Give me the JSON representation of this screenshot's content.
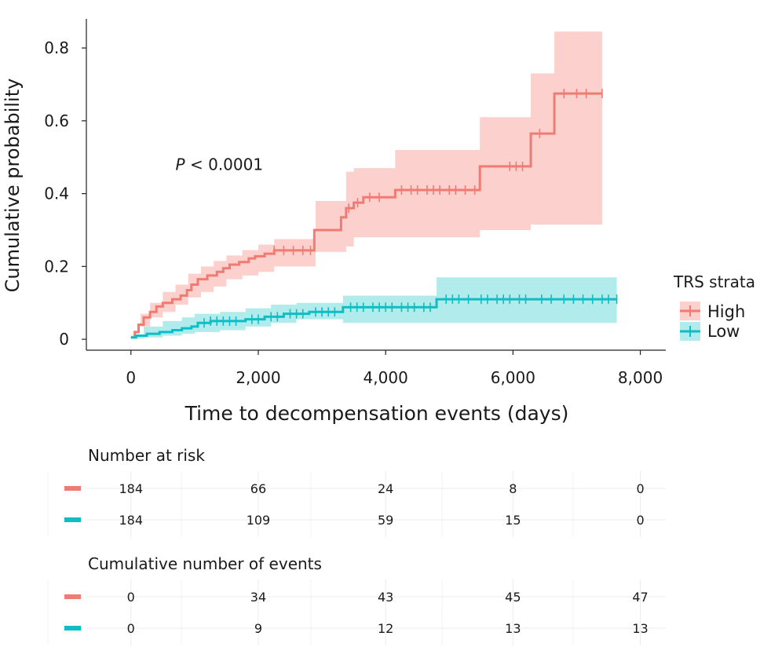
{
  "chart_data": {
    "type": "line",
    "subtype": "kaplan-meier cumulative incidence",
    "xlabel": "Time to decompensation events (days)",
    "ylabel": "Cumulative probability",
    "xlim": [
      -700,
      8400
    ],
    "ylim": [
      -0.03,
      0.88
    ],
    "x_ticks": [
      0,
      2000,
      4000,
      6000,
      8000
    ],
    "x_tick_labels": [
      "0",
      "2,000",
      "4,000",
      "6,000",
      "8,000"
    ],
    "y_ticks": [
      0,
      0.2,
      0.4,
      0.6,
      0.8
    ],
    "y_tick_labels": [
      "0",
      "0.2",
      "0.4",
      "0.6",
      "0.8"
    ],
    "annotation": {
      "prefix": "P",
      "text": " < 0.0001",
      "x": 700,
      "y": 0.48
    },
    "legend": {
      "title": "TRS strata",
      "position": "right",
      "entries": [
        "High",
        "Low"
      ]
    },
    "series": [
      {
        "name": "High",
        "color": "#f07b72",
        "band_color": "#fcd0cd",
        "steps": [
          [
            0,
            0.005
          ],
          [
            60,
            0.02
          ],
          [
            120,
            0.04
          ],
          [
            200,
            0.06
          ],
          [
            300,
            0.075
          ],
          [
            400,
            0.09
          ],
          [
            500,
            0.1
          ],
          [
            650,
            0.11
          ],
          [
            780,
            0.12
          ],
          [
            880,
            0.135
          ],
          [
            950,
            0.15
          ],
          [
            1050,
            0.165
          ],
          [
            1200,
            0.175
          ],
          [
            1350,
            0.185
          ],
          [
            1450,
            0.195
          ],
          [
            1550,
            0.205
          ],
          [
            1700,
            0.212
          ],
          [
            1850,
            0.222
          ],
          [
            1950,
            0.228
          ],
          [
            2100,
            0.235
          ],
          [
            2250,
            0.244
          ],
          [
            2880,
            0.3
          ],
          [
            3300,
            0.335
          ],
          [
            3380,
            0.36
          ],
          [
            3500,
            0.375
          ],
          [
            3650,
            0.39
          ],
          [
            4150,
            0.41
          ],
          [
            5480,
            0.475
          ],
          [
            6280,
            0.565
          ],
          [
            6650,
            0.675
          ],
          [
            7400,
            0.675
          ]
        ],
        "upper": [
          [
            0,
            0.01
          ],
          [
            150,
            0.07
          ],
          [
            300,
            0.1
          ],
          [
            500,
            0.13
          ],
          [
            700,
            0.15
          ],
          [
            900,
            0.18
          ],
          [
            1100,
            0.2
          ],
          [
            1300,
            0.215
          ],
          [
            1500,
            0.23
          ],
          [
            1750,
            0.245
          ],
          [
            2000,
            0.26
          ],
          [
            2250,
            0.275
          ],
          [
            2900,
            0.38
          ],
          [
            3380,
            0.46
          ],
          [
            3500,
            0.47
          ],
          [
            4150,
            0.52
          ],
          [
            5480,
            0.61
          ],
          [
            6280,
            0.73
          ],
          [
            6650,
            0.845
          ],
          [
            7400,
            0.845
          ]
        ],
        "lower": [
          [
            0,
            0.0
          ],
          [
            150,
            0.01
          ],
          [
            300,
            0.035
          ],
          [
            500,
            0.06
          ],
          [
            700,
            0.075
          ],
          [
            900,
            0.095
          ],
          [
            1100,
            0.115
          ],
          [
            1300,
            0.13
          ],
          [
            1500,
            0.145
          ],
          [
            1750,
            0.165
          ],
          [
            2000,
            0.175
          ],
          [
            2250,
            0.185
          ],
          [
            2900,
            0.2
          ],
          [
            3380,
            0.24
          ],
          [
            3500,
            0.255
          ],
          [
            4150,
            0.28
          ],
          [
            5480,
            0.28
          ],
          [
            6280,
            0.3
          ],
          [
            6650,
            0.315
          ],
          [
            7400,
            0.315
          ]
        ],
        "censor_x": [
          2250,
          2400,
          2550,
          2700,
          2820,
          3420,
          3560,
          3750,
          3900,
          4250,
          4400,
          4500,
          4650,
          4750,
          4850,
          5000,
          5100,
          5250,
          5400,
          5950,
          6050,
          6150,
          6420,
          6800,
          7000,
          7150,
          7400
        ]
      },
      {
        "name": "Low",
        "color": "#0fbec4",
        "band_color": "#b2ebec",
        "steps": [
          [
            0,
            0.005
          ],
          [
            80,
            0.01
          ],
          [
            250,
            0.015
          ],
          [
            450,
            0.02
          ],
          [
            650,
            0.025
          ],
          [
            800,
            0.03
          ],
          [
            950,
            0.035
          ],
          [
            1050,
            0.045
          ],
          [
            1250,
            0.05
          ],
          [
            1800,
            0.055
          ],
          [
            2100,
            0.062
          ],
          [
            2400,
            0.07
          ],
          [
            2800,
            0.075
          ],
          [
            3330,
            0.088
          ],
          [
            4800,
            0.11
          ],
          [
            7630,
            0.11
          ]
        ],
        "upper": [
          [
            0,
            0.01
          ],
          [
            200,
            0.035
          ],
          [
            500,
            0.05
          ],
          [
            800,
            0.06
          ],
          [
            1000,
            0.07
          ],
          [
            1400,
            0.075
          ],
          [
            1800,
            0.085
          ],
          [
            2200,
            0.095
          ],
          [
            2600,
            0.1
          ],
          [
            3330,
            0.12
          ],
          [
            4800,
            0.17
          ],
          [
            7630,
            0.17
          ]
        ],
        "lower": [
          [
            0,
            0.0
          ],
          [
            200,
            0.002
          ],
          [
            500,
            0.005
          ],
          [
            800,
            0.01
          ],
          [
            1000,
            0.015
          ],
          [
            1400,
            0.02
          ],
          [
            1800,
            0.025
          ],
          [
            2200,
            0.035
          ],
          [
            2600,
            0.045
          ],
          [
            3330,
            0.055
          ],
          [
            4800,
            0.045
          ],
          [
            7630,
            0.045
          ]
        ],
        "censor_x": [
          1150,
          1250,
          1350,
          1450,
          1550,
          1650,
          1900,
          2000,
          2200,
          2300,
          2500,
          2600,
          2700,
          2900,
          3000,
          3100,
          3200,
          3450,
          3550,
          3650,
          3800,
          3900,
          4000,
          4100,
          4250,
          4350,
          4450,
          4600,
          4700,
          4950,
          5050,
          5150,
          5300,
          5500,
          5600,
          5750,
          5850,
          5950,
          6100,
          6200,
          6450,
          6600,
          6800,
          6950,
          7100,
          7250,
          7400,
          7500,
          7630
        ]
      }
    ],
    "risk_tables": [
      {
        "title": "Number at risk",
        "times": [
          0,
          2000,
          4000,
          6000,
          8000
        ],
        "rows": [
          {
            "strata": "High",
            "values": [
              "184",
              "66",
              "24",
              "8",
              "0"
            ]
          },
          {
            "strata": "Low",
            "values": [
              "184",
              "109",
              "59",
              "15",
              "0"
            ]
          }
        ]
      },
      {
        "title": "Cumulative number of events",
        "times": [
          0,
          2000,
          4000,
          6000,
          8000
        ],
        "rows": [
          {
            "strata": "High",
            "values": [
              "0",
              "34",
              "43",
              "45",
              "47"
            ]
          },
          {
            "strata": "Low",
            "values": [
              "0",
              "9",
              "12",
              "13",
              "13"
            ]
          }
        ]
      }
    ]
  }
}
